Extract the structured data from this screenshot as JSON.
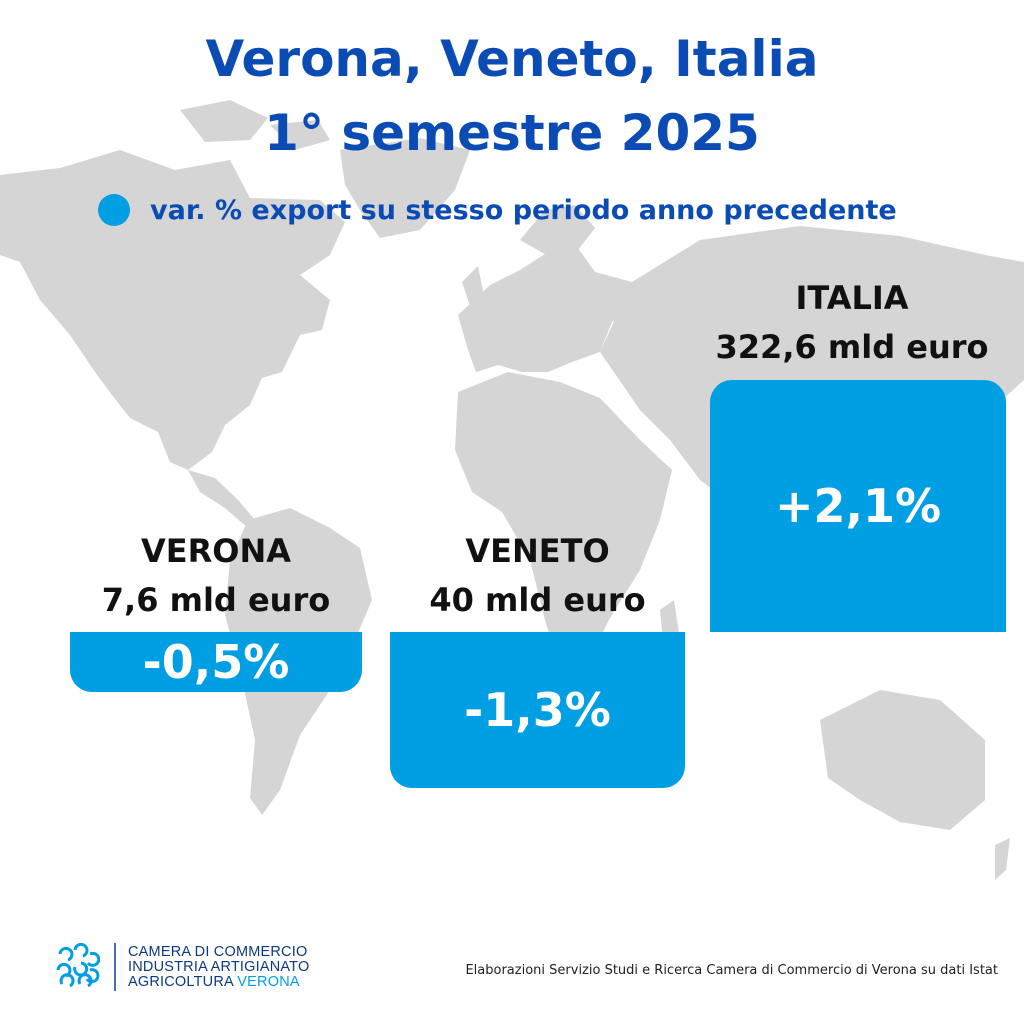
{
  "header": {
    "title_line1": "Verona, Veneto, Italia",
    "title_line2": "1° semestre 2025"
  },
  "legend": {
    "label": "var. % export su stesso periodo anno precedente",
    "color": "#009fe3"
  },
  "colors": {
    "title": "#0b4bb4",
    "bar": "#009fe3",
    "map": "#d5d5d5"
  },
  "chart_data": {
    "type": "bar",
    "categories": [
      "VERONA",
      "VENETO",
      "ITALIA"
    ],
    "export_values": [
      "7,6 mld euro",
      "40 mld euro",
      "322,6 mld euro"
    ],
    "series": [
      {
        "values": [
          -0.5,
          -1.3,
          2.1
        ],
        "labels": [
          "-0,5%",
          "-1,3%",
          "+2,1%"
        ]
      }
    ],
    "legend_placement": "top"
  },
  "footer": {
    "logo_line1": "CAMERA DI COMMERCIO",
    "logo_line2": "INDUSTRIA ARTIGIANATO",
    "logo_line3a": "AGRICOLTURA",
    "logo_line3b": "VERONA",
    "source": "Elaborazioni Servizio Studi e Ricerca Camera di Commercio di Verona su dati Istat"
  }
}
